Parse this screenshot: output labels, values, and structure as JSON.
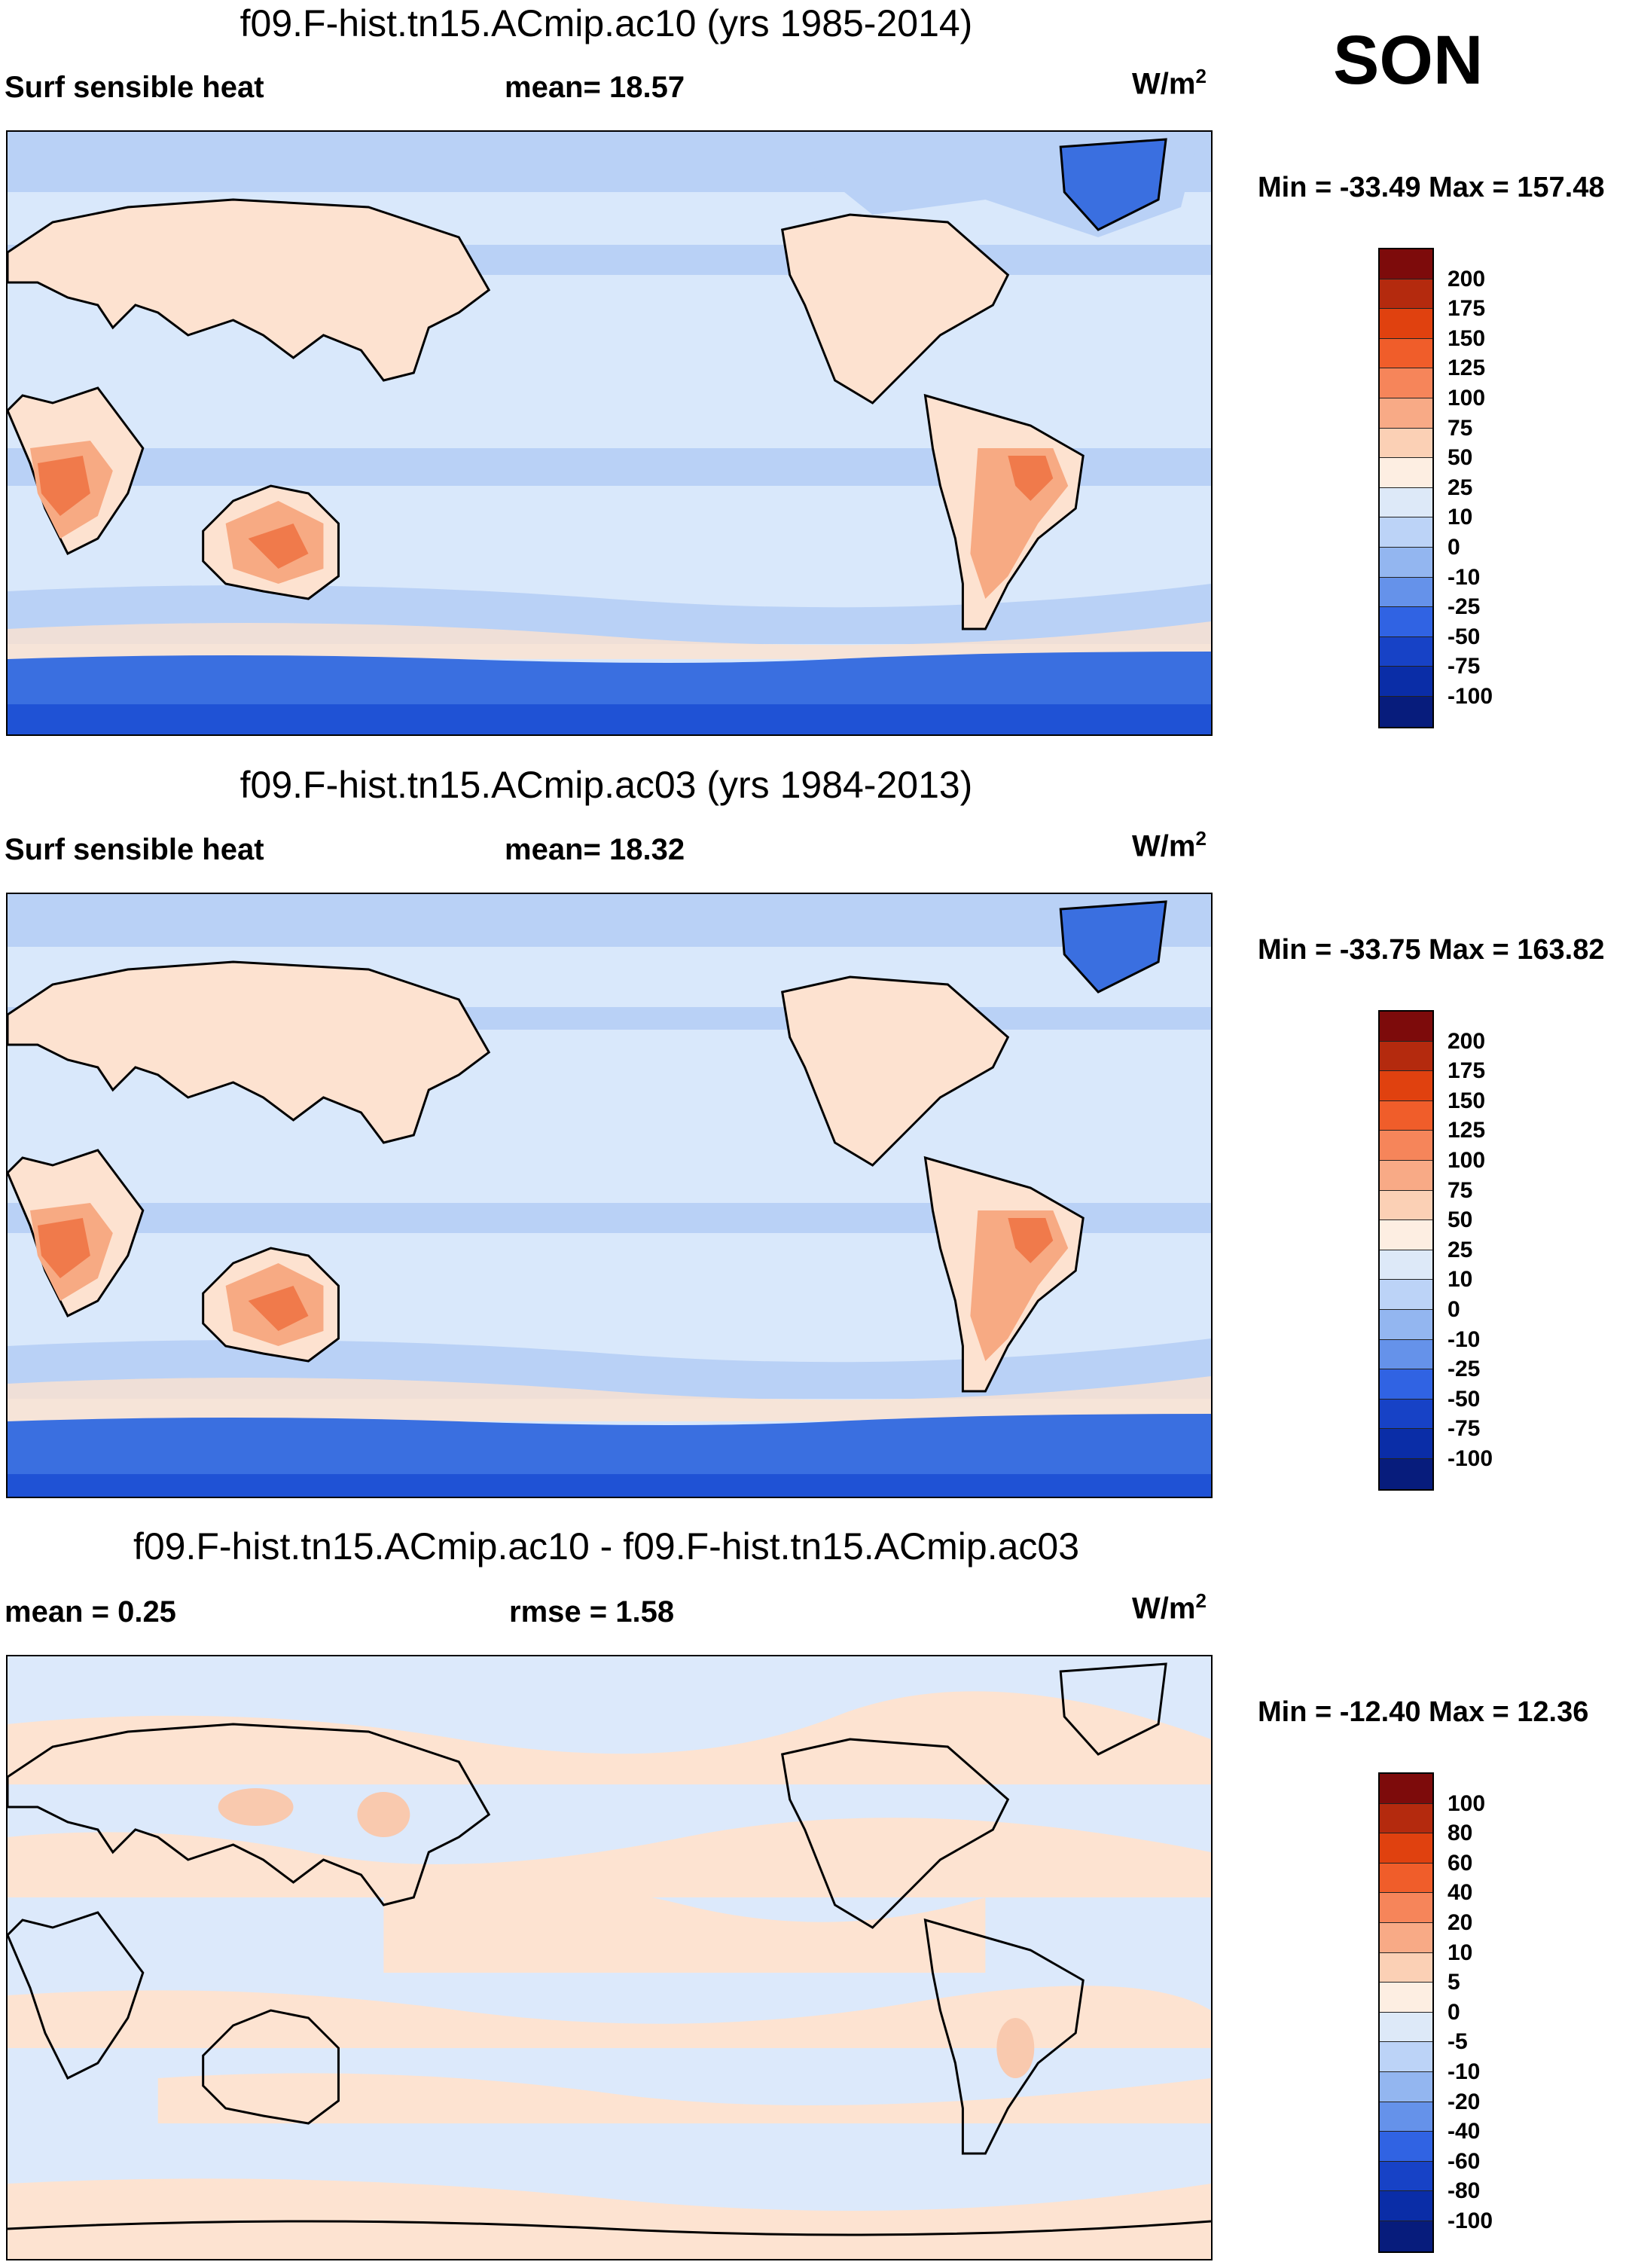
{
  "season": "SON",
  "panels": [
    {
      "title": "f09.F-hist.tn15.ACmip.ac10 (yrs 1985-2014)",
      "left_label": "Surf sensible heat",
      "center_label": "mean=  18.57",
      "units_base": "W/m",
      "units_sup": "2",
      "minmax": "Min = -33.49 Max = 157.48",
      "legend_labels": [
        "200",
        "175",
        "150",
        "125",
        "100",
        "75",
        "50",
        "25",
        "10",
        "0",
        "-10",
        "-25",
        "-50",
        "-75",
        "-100"
      ]
    },
    {
      "title": "f09.F-hist.tn15.ACmip.ac03 (yrs 1984-2013)",
      "left_label": "Surf sensible heat",
      "center_label": "mean=  18.32",
      "units_base": "W/m",
      "units_sup": "2",
      "minmax": "Min = -33.75 Max = 163.82",
      "legend_labels": [
        "200",
        "175",
        "150",
        "125",
        "100",
        "75",
        "50",
        "25",
        "10",
        "0",
        "-10",
        "-25",
        "-50",
        "-75",
        "-100"
      ]
    },
    {
      "title": "f09.F-hist.tn15.ACmip.ac10 - f09.F-hist.tn15.ACmip.ac03",
      "left_label": "mean =   0.25",
      "center_label": "rmse =   1.58",
      "units_base": "W/m",
      "units_sup": "2",
      "minmax": "Min = -12.40 Max =  12.36",
      "legend_labels": [
        "100",
        "80",
        "60",
        "40",
        "20",
        "10",
        "5",
        "0",
        "-5",
        "-10",
        "-20",
        "-40",
        "-60",
        "-80",
        "-100"
      ]
    }
  ],
  "colors": {
    "palette_top_to_bottom": [
      "#7d0b0b",
      "#b42a0e",
      "#e0410f",
      "#f05d2a",
      "#f6855a",
      "#f8aa86",
      "#fbd0b5",
      "#fdeee2",
      "#dde9f8",
      "#bcd3f7",
      "#93b6f0",
      "#6592ea",
      "#3063e3",
      "#1742c6",
      "#0a2da7",
      "#071c7c"
    ],
    "ocean_light": "#d9e8fb",
    "ocean_mid": "#b9d1f6",
    "ocean_cold": "#8fb1ef",
    "ice": "#3a6fe0",
    "ice_deep": "#1f52d5",
    "land_warm": "#fde2d0",
    "land_hot": "#f7aa83",
    "land_hotter": "#f07a4b",
    "diff_bg": "#dce9fb",
    "diff_pos": "#fde3d1",
    "diff_pos2": "#f9c9ae"
  }
}
